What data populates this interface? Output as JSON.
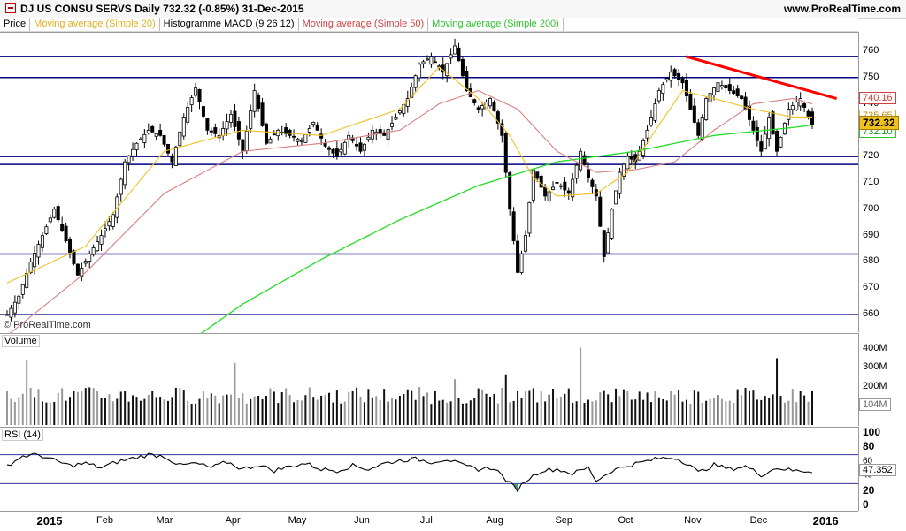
{
  "header": {
    "title": "DJ US CONSU SERVS   Daily   732.32 (-0.85%)   31-Dec-2015",
    "site": "www.ProRealTime.com"
  },
  "legend": {
    "price": "Price",
    "ma20": "Moving average (Simple 20)",
    "macd": "Histogramme MACD (9 26 12)",
    "ma50": "Moving average (Simple 50)",
    "ma200": "Moving average (Simple 200)"
  },
  "watermark": "© ProRealTime.com",
  "colors": {
    "ma20": "#f0c020",
    "ma50": "#d98080",
    "ma200": "#22dd22",
    "hline": "#000080",
    "trend": "#ff0000",
    "candle": "#000000",
    "rsi_band": "#3030a0"
  },
  "chart_data": [
    {
      "type": "candlestick",
      "panel": "price",
      "title": "DJ US CONSU SERVS",
      "period": "Daily",
      "last_price": 732.32,
      "change_pct": -0.85,
      "date": "31-Dec-2015",
      "ylim": [
        655,
        765
      ],
      "yticks": [
        660,
        670,
        680,
        690,
        700,
        710,
        720,
        730,
        740,
        750,
        760
      ],
      "horizontal_levels": [
        758,
        750,
        720,
        717,
        683,
        660
      ],
      "trendline": {
        "from": {
          "x": "Nov",
          "y": 758
        },
        "to": {
          "x": "2016",
          "y": 742
        }
      },
      "value_tags": [
        {
          "label": "740.16",
          "value": 740.16,
          "series": "ma50"
        },
        {
          "label": "735.65",
          "value": 735.65,
          "series": "ma20"
        },
        {
          "label": "732.10",
          "value": 732.1,
          "series": "ma200"
        },
        {
          "label": "732.32",
          "value": 732.32,
          "series": "price"
        }
      ],
      "close_keypoints": [
        [
          0,
          660
        ],
        [
          3,
          667
        ],
        [
          6,
          680
        ],
        [
          9,
          690
        ],
        [
          12,
          700
        ],
        [
          15,
          688
        ],
        [
          18,
          675
        ],
        [
          21,
          683
        ],
        [
          24,
          690
        ],
        [
          27,
          698
        ],
        [
          30,
          718
        ],
        [
          33,
          725
        ],
        [
          36,
          730
        ],
        [
          39,
          728
        ],
        [
          42,
          718
        ],
        [
          45,
          735
        ],
        [
          48,
          746
        ],
        [
          51,
          730
        ],
        [
          54,
          728
        ],
        [
          57,
          736
        ],
        [
          60,
          722
        ],
        [
          63,
          745
        ],
        [
          66,
          725
        ],
        [
          69,
          730
        ],
        [
          72,
          728
        ],
        [
          75,
          726
        ],
        [
          78,
          733
        ],
        [
          81,
          724
        ],
        [
          84,
          720
        ],
        [
          87,
          728
        ],
        [
          90,
          722
        ],
        [
          93,
          730
        ],
        [
          96,
          728
        ],
        [
          99,
          735
        ],
        [
          102,
          742
        ],
        [
          105,
          755
        ],
        [
          108,
          758
        ],
        [
          111,
          752
        ],
        [
          114,
          762
        ],
        [
          117,
          745
        ],
        [
          120,
          738
        ],
        [
          123,
          742
        ],
        [
          126,
          728
        ],
        [
          128,
          700
        ],
        [
          130,
          676
        ],
        [
          132,
          690
        ],
        [
          134,
          715
        ],
        [
          137,
          705
        ],
        [
          140,
          710
        ],
        [
          143,
          706
        ],
        [
          146,
          722
        ],
        [
          148,
          712
        ],
        [
          150,
          705
        ],
        [
          152,
          682
        ],
        [
          154,
          700
        ],
        [
          156,
          714
        ],
        [
          158,
          720
        ],
        [
          160,
          718
        ],
        [
          163,
          730
        ],
        [
          166,
          745
        ],
        [
          169,
          752
        ],
        [
          172,
          748
        ],
        [
          174,
          738
        ],
        [
          176,
          728
        ],
        [
          178,
          742
        ],
        [
          181,
          748
        ],
        [
          184,
          745
        ],
        [
          187,
          742
        ],
        [
          190,
          730
        ],
        [
          192,
          722
        ],
        [
          194,
          735
        ],
        [
          196,
          722
        ],
        [
          199,
          738
        ],
        [
          202,
          742
        ],
        [
          205,
          732
        ]
      ],
      "ma20_keypoints": [
        [
          0,
          672
        ],
        [
          20,
          686
        ],
        [
          40,
          722
        ],
        [
          60,
          730
        ],
        [
          80,
          728
        ],
        [
          100,
          738
        ],
        [
          110,
          754
        ],
        [
          120,
          742
        ],
        [
          128,
          728
        ],
        [
          134,
          712
        ],
        [
          140,
          705
        ],
        [
          150,
          706
        ],
        [
          158,
          714
        ],
        [
          166,
          732
        ],
        [
          172,
          745
        ],
        [
          180,
          742
        ],
        [
          190,
          738
        ],
        [
          200,
          735
        ],
        [
          205,
          735
        ]
      ],
      "ma50_keypoints": [
        [
          0,
          652
        ],
        [
          20,
          676
        ],
        [
          40,
          706
        ],
        [
          60,
          722
        ],
        [
          80,
          725
        ],
        [
          100,
          730
        ],
        [
          110,
          740
        ],
        [
          120,
          745
        ],
        [
          130,
          738
        ],
        [
          140,
          722
        ],
        [
          150,
          714
        ],
        [
          160,
          715
        ],
        [
          170,
          718
        ],
        [
          180,
          730
        ],
        [
          190,
          740
        ],
        [
          200,
          742
        ],
        [
          205,
          740
        ]
      ],
      "ma200_keypoints": [
        [
          42,
          645
        ],
        [
          60,
          664
        ],
        [
          80,
          681
        ],
        [
          100,
          696
        ],
        [
          120,
          709
        ],
        [
          140,
          718
        ],
        [
          160,
          722
        ],
        [
          180,
          728
        ],
        [
          200,
          731
        ],
        [
          205,
          732
        ]
      ]
    },
    {
      "type": "bar",
      "panel": "volume",
      "title": "Volume",
      "yticks_labels": [
        "400M",
        "300M",
        "200M"
      ],
      "yticks": [
        400,
        300,
        200
      ],
      "ylim": [
        0,
        440
      ],
      "last_label": "104M",
      "unit": "M",
      "spikes": [
        {
          "x": 5,
          "value": 340
        },
        {
          "x": 58,
          "value": 325
        },
        {
          "x": 114,
          "value": 240
        },
        {
          "x": 127,
          "value": 265
        },
        {
          "x": 146,
          "value": 405
        },
        {
          "x": 196,
          "value": 350
        }
      ]
    },
    {
      "type": "line",
      "panel": "rsi",
      "title": "RSI (14)",
      "ylim": [
        0,
        100
      ],
      "yticks": [
        100,
        80,
        60,
        40,
        20,
        0
      ],
      "bands": [
        70,
        30
      ],
      "last_label": "47.352",
      "last_value": 47.352,
      "keypoints": [
        [
          0,
          55
        ],
        [
          4,
          68
        ],
        [
          8,
          70
        ],
        [
          12,
          62
        ],
        [
          16,
          55
        ],
        [
          20,
          58
        ],
        [
          24,
          52
        ],
        [
          28,
          60
        ],
        [
          32,
          65
        ],
        [
          36,
          70
        ],
        [
          40,
          68
        ],
        [
          44,
          55
        ],
        [
          48,
          58
        ],
        [
          52,
          52
        ],
        [
          56,
          60
        ],
        [
          60,
          50
        ],
        [
          64,
          56
        ],
        [
          68,
          48
        ],
        [
          72,
          54
        ],
        [
          76,
          58
        ],
        [
          80,
          50
        ],
        [
          84,
          48
        ],
        [
          88,
          55
        ],
        [
          92,
          50
        ],
        [
          96,
          58
        ],
        [
          100,
          62
        ],
        [
          104,
          64
        ],
        [
          108,
          60
        ],
        [
          112,
          64
        ],
        [
          116,
          55
        ],
        [
          120,
          50
        ],
        [
          124,
          52
        ],
        [
          128,
          30
        ],
        [
          130,
          22
        ],
        [
          132,
          34
        ],
        [
          136,
          48
        ],
        [
          140,
          50
        ],
        [
          144,
          44
        ],
        [
          148,
          52
        ],
        [
          150,
          34
        ],
        [
          154,
          48
        ],
        [
          158,
          55
        ],
        [
          162,
          60
        ],
        [
          166,
          65
        ],
        [
          170,
          66
        ],
        [
          174,
          56
        ],
        [
          176,
          45
        ],
        [
          180,
          56
        ],
        [
          184,
          50
        ],
        [
          188,
          54
        ],
        [
          192,
          42
        ],
        [
          196,
          52
        ],
        [
          200,
          48
        ],
        [
          205,
          47
        ]
      ]
    }
  ],
  "xaxis": {
    "labels": [
      {
        "label": "2015",
        "x": 10,
        "bold": true
      },
      {
        "label": "Feb",
        "x": 29
      },
      {
        "label": "Mar",
        "x": 48
      },
      {
        "label": "Apr",
        "x": 70
      },
      {
        "label": "May",
        "x": 90
      },
      {
        "label": "Jun",
        "x": 111
      },
      {
        "label": "Jul",
        "x": 132
      },
      {
        "label": "Aug",
        "x": 153
      },
      {
        "label": "Sep",
        "x": 175
      },
      {
        "label": "Oct",
        "x": 195
      },
      {
        "label": "Nov",
        "x": 216
      },
      {
        "label": "Dec",
        "x": 237
      },
      {
        "label": "2016",
        "x": 257,
        "bold": true
      }
    ]
  }
}
